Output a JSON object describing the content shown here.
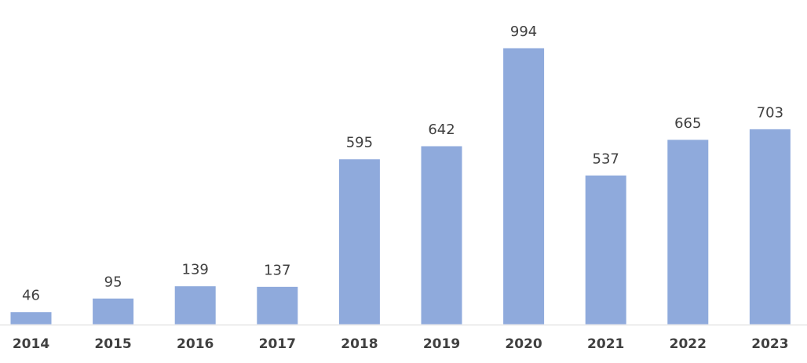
{
  "chart_data": {
    "type": "bar",
    "categories": [
      "2014",
      "2015",
      "2016",
      "2017",
      "2018",
      "2019",
      "2020",
      "2021",
      "2022",
      "2023"
    ],
    "values": [
      46,
      95,
      139,
      137,
      595,
      642,
      994,
      537,
      665,
      703
    ],
    "color": "#8faadc"
  }
}
